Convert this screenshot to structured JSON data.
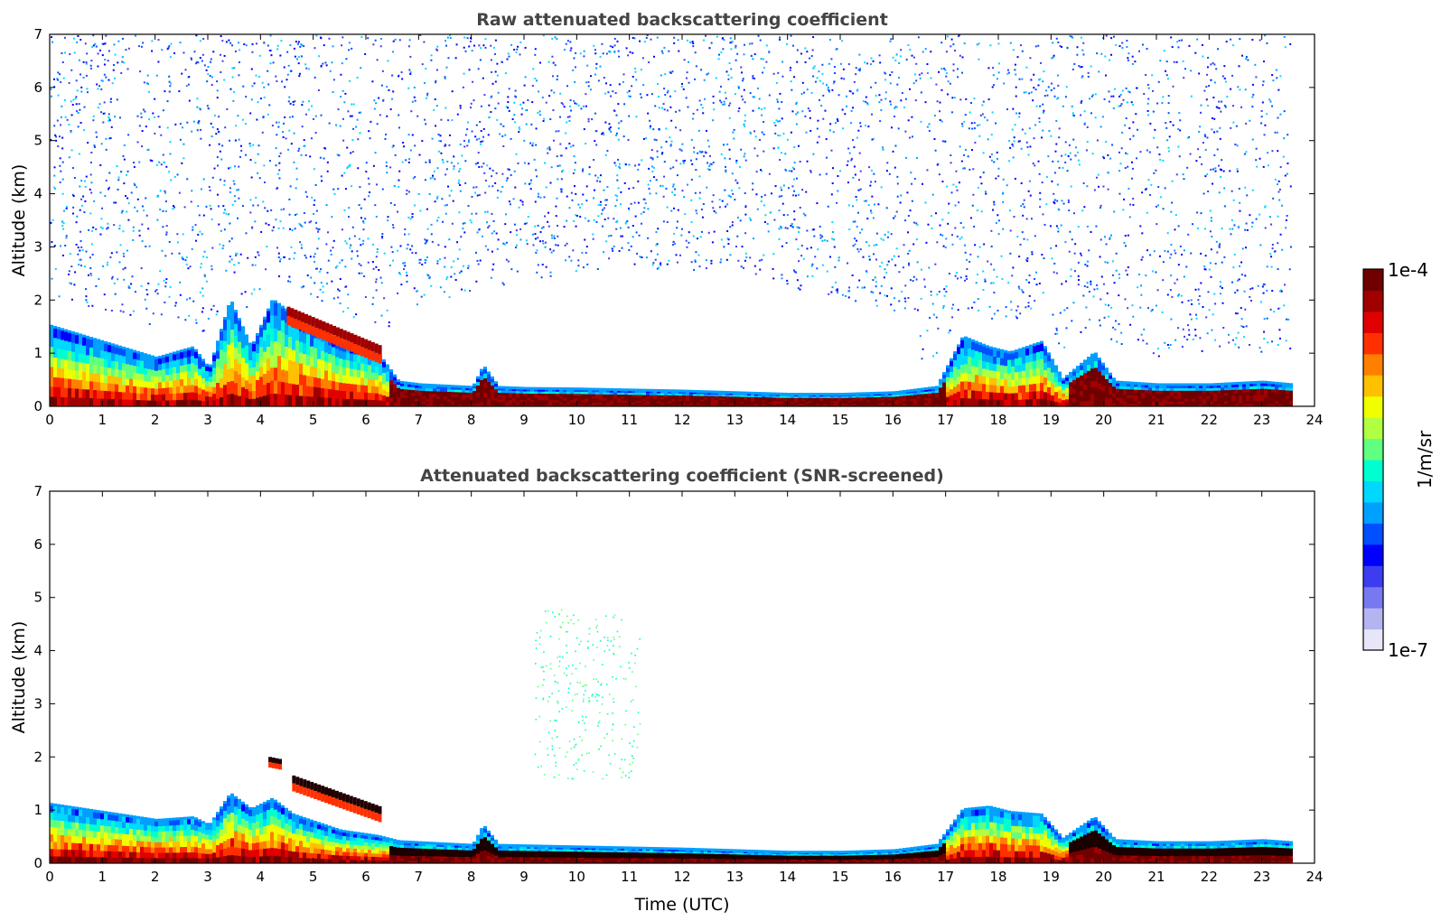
{
  "chart_data": [
    {
      "type": "heatmap",
      "title": "Raw attenuated backscattering coefficient",
      "xlabel": "",
      "ylabel": "Altitude (km)",
      "xlim": [
        0,
        24
      ],
      "ylim": [
        0,
        7
      ],
      "x_ticks": [
        0,
        1,
        2,
        3,
        4,
        5,
        6,
        7,
        8,
        9,
        10,
        11,
        12,
        13,
        14,
        15,
        16,
        17,
        18,
        19,
        20,
        21,
        22,
        23,
        24
      ],
      "y_ticks": [
        0,
        1,
        2,
        3,
        4,
        5,
        6,
        7
      ],
      "data_end_time": 23.55,
      "noise_level": 0.7,
      "layer_top_km": [
        [
          0,
          1.5
        ],
        [
          1,
          1.2
        ],
        [
          2,
          0.9
        ],
        [
          2.7,
          1.1
        ],
        [
          3.0,
          0.7
        ],
        [
          3.4,
          2.0
        ],
        [
          3.8,
          1.1
        ],
        [
          4.2,
          2.0
        ],
        [
          4.6,
          1.7
        ],
        [
          5.5,
          1.2
        ],
        [
          6.2,
          1.0
        ],
        [
          6.6,
          0.45
        ],
        [
          7,
          0.4
        ],
        [
          8,
          0.35
        ],
        [
          8.2,
          0.75
        ],
        [
          8.5,
          0.35
        ],
        [
          9,
          0.33
        ],
        [
          10,
          0.32
        ],
        [
          11,
          0.3
        ],
        [
          12,
          0.28
        ],
        [
          13,
          0.25
        ],
        [
          14,
          0.22
        ],
        [
          15,
          0.22
        ],
        [
          16,
          0.25
        ],
        [
          16.8,
          0.35
        ],
        [
          17.3,
          1.3
        ],
        [
          17.8,
          1.1
        ],
        [
          18.2,
          1.0
        ],
        [
          18.8,
          1.2
        ],
        [
          19.2,
          0.5
        ],
        [
          19.8,
          1.0
        ],
        [
          20.2,
          0.45
        ],
        [
          21,
          0.4
        ],
        [
          22,
          0.4
        ],
        [
          23,
          0.45
        ],
        [
          23.55,
          0.4
        ]
      ],
      "elevated_layers": [
        {
          "x0": 4.5,
          "x1": 6.3,
          "y0": 1.7,
          "y1": 0.95,
          "thickness": 0.35
        }
      ]
    },
    {
      "type": "heatmap",
      "title": "Attenuated backscattering coefficient (SNR-screened)",
      "xlabel": "Time (UTC)",
      "ylabel": "Altitude (km)",
      "xlim": [
        0,
        24
      ],
      "ylim": [
        0,
        7
      ],
      "x_ticks": [
        0,
        1,
        2,
        3,
        4,
        5,
        6,
        7,
        8,
        9,
        10,
        11,
        12,
        13,
        14,
        15,
        16,
        17,
        18,
        19,
        20,
        21,
        22,
        23,
        24
      ],
      "y_ticks": [
        0,
        1,
        2,
        3,
        4,
        5,
        6,
        7
      ],
      "data_end_time": 23.55,
      "noise_level": 0.02,
      "layer_top_km": [
        [
          0,
          1.1
        ],
        [
          1,
          0.95
        ],
        [
          2,
          0.8
        ],
        [
          2.7,
          0.85
        ],
        [
          3.0,
          0.7
        ],
        [
          3.4,
          1.3
        ],
        [
          3.8,
          1.0
        ],
        [
          4.2,
          1.2
        ],
        [
          4.6,
          0.9
        ],
        [
          5.5,
          0.6
        ],
        [
          6.2,
          0.5
        ],
        [
          6.6,
          0.4
        ],
        [
          7,
          0.38
        ],
        [
          8,
          0.33
        ],
        [
          8.2,
          0.7
        ],
        [
          8.5,
          0.33
        ],
        [
          9,
          0.32
        ],
        [
          10,
          0.3
        ],
        [
          11,
          0.28
        ],
        [
          12,
          0.26
        ],
        [
          13,
          0.23
        ],
        [
          14,
          0.2
        ],
        [
          15,
          0.2
        ],
        [
          16,
          0.23
        ],
        [
          16.8,
          0.33
        ],
        [
          17.3,
          1.0
        ],
        [
          17.8,
          1.05
        ],
        [
          18.2,
          0.95
        ],
        [
          18.8,
          0.9
        ],
        [
          19.2,
          0.45
        ],
        [
          19.8,
          0.85
        ],
        [
          20.2,
          0.42
        ],
        [
          21,
          0.38
        ],
        [
          22,
          0.38
        ],
        [
          23,
          0.42
        ],
        [
          23.55,
          0.38
        ]
      ],
      "elevated_layers": [
        {
          "x0": 4.15,
          "x1": 4.4,
          "y0": 1.9,
          "y1": 1.85,
          "thickness": 0.2
        },
        {
          "x0": 4.6,
          "x1": 6.3,
          "y0": 1.5,
          "y1": 0.9,
          "thickness": 0.3
        }
      ],
      "sparse_cloud": {
        "x0": 9.2,
        "x1": 11.2,
        "y0": 1.6,
        "y1": 4.8
      }
    }
  ],
  "colorbar": {
    "label": "1/m/sr",
    "max_label": "1e-4",
    "min_label": "1e-7",
    "colors": [
      "#e6e6f8",
      "#b4b4f0",
      "#7878f0",
      "#3c3cf0",
      "#0000ff",
      "#0050ff",
      "#00a0ff",
      "#00d8ff",
      "#00ffd0",
      "#60ff80",
      "#b0ff40",
      "#f0ff00",
      "#ffc000",
      "#ff8000",
      "#ff3000",
      "#e00000",
      "#a00000",
      "#700000"
    ]
  }
}
